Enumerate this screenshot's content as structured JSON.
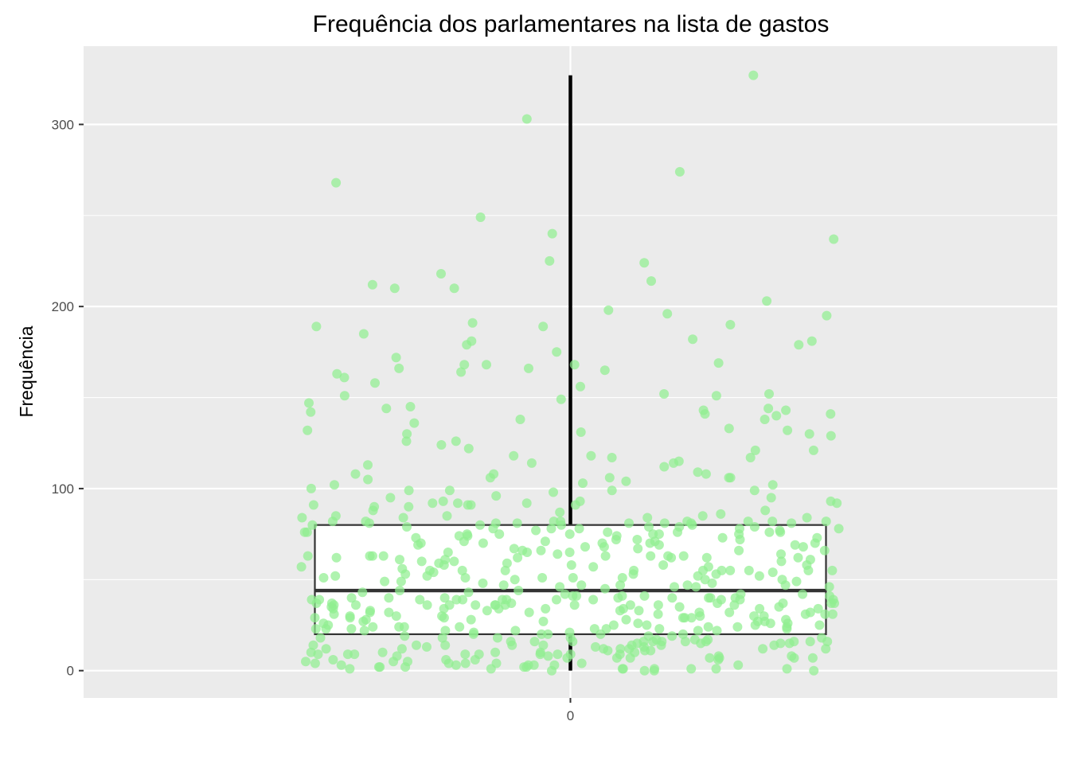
{
  "chart_data": {
    "type": "boxplot",
    "title": "Frequência dos parlamentares na lista de gastos",
    "xlabel": "",
    "ylabel": "Frequência",
    "x_categories": [
      "0"
    ],
    "y_ticks": [
      0,
      100,
      200,
      300
    ],
    "ylim": [
      -15,
      343
    ],
    "grid": true,
    "colors": {
      "panel_background": "#EBEBEB",
      "grid": "#FFFFFF",
      "points": "#90EE90",
      "box_fill": "#FFFFFF",
      "box_line": "#333333",
      "whisker": "#000000"
    },
    "box": {
      "category": "0",
      "q1": 20,
      "median": 44,
      "q3": 80,
      "whisker_low": 0,
      "whisker_high": 327
    },
    "jitter_points": {
      "description_count": 513,
      "seed": 12345,
      "distribution_quantiles": [
        0,
        20,
        44,
        80,
        327
      ],
      "outliers": [
        327,
        303,
        274,
        268,
        249,
        240,
        237,
        225,
        224,
        218,
        214,
        212,
        210,
        210,
        203,
        198,
        196,
        195,
        191,
        190,
        189,
        189,
        185,
        182,
        181,
        181,
        179,
        179,
        175
      ]
    }
  }
}
